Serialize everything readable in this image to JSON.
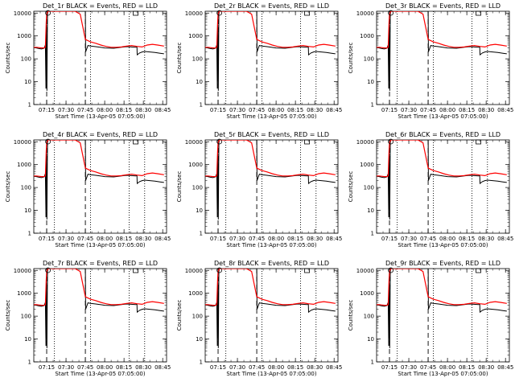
{
  "chart_data": {
    "type": "line",
    "layout": "3x3",
    "shared": {
      "xlabel": "Start Time (13-Apr-05 07:05:00)",
      "ylabel": "Counts/sec",
      "x_tick_labels": [
        "07:15",
        "07:30",
        "07:45",
        "08:00",
        "08:15",
        "08:30",
        "08:45"
      ],
      "x_tick_minutes": [
        10,
        25,
        40,
        55,
        70,
        85,
        100
      ],
      "xlim_minutes": [
        0,
        103
      ],
      "ylim": [
        1,
        12000
      ],
      "yscale": "log",
      "y_tick_labels": [
        "1",
        "10",
        "100",
        "1000",
        "10000"
      ],
      "y_tick_values": [
        1,
        10,
        100,
        1000,
        10000
      ],
      "dashed_lines_minutes": [
        10,
        40
      ],
      "dotted_lines_minutes": [
        16,
        44,
        74,
        86
      ],
      "series_names": [
        "Events",
        "LLD"
      ],
      "series_colors": [
        "#000000",
        "#ff0000"
      ]
    },
    "panels": [
      {
        "title": "Det_1r BLACK = Events, RED = LLD"
      },
      {
        "title": "Det_2r BLACK = Events, RED = LLD"
      },
      {
        "title": "Det_3r BLACK = Events, RED = LLD"
      },
      {
        "title": "Det_4r BLACK = Events, RED = LLD"
      },
      {
        "title": "Det_5r BLACK = Events, RED = LLD"
      },
      {
        "title": "Det_6r BLACK = Events, RED = LLD"
      },
      {
        "title": "Det_7r BLACK = Events, RED = LLD"
      },
      {
        "title": "Det_8r BLACK = Events, RED = LLD"
      },
      {
        "title": "Det_9r BLACK = Events, RED = LLD"
      }
    ],
    "events": {
      "x": [
        0,
        2,
        4,
        6,
        8,
        9,
        9.4,
        9.8,
        10.2,
        10.6,
        11,
        11.5,
        12,
        40,
        40.2,
        42,
        44,
        48,
        55,
        62,
        68,
        70,
        72,
        79,
        80,
        80.2,
        82,
        84,
        86,
        90,
        94,
        98,
        101
      ],
      "y": [
        320,
        300,
        280,
        270,
        290,
        400,
        5,
        3000,
        4,
        9000,
        12000,
        12000,
        12000,
        12000,
        200,
        380,
        360,
        340,
        300,
        290,
        320,
        330,
        340,
        320,
        330,
        150,
        180,
        200,
        210,
        200,
        190,
        175,
        165
      ]
    },
    "lld": {
      "x": [
        0,
        2,
        4,
        6,
        8,
        9,
        9.6,
        10,
        11,
        14,
        20,
        24,
        28,
        32,
        36,
        40,
        44,
        48,
        52,
        56,
        60,
        64,
        68,
        72,
        76,
        80,
        84,
        88,
        92,
        96,
        101
      ],
      "y": [
        320,
        320,
        310,
        300,
        300,
        320,
        3500,
        9000,
        12000,
        12000,
        12000,
        12000,
        12000,
        12000,
        9000,
        700,
        550,
        480,
        400,
        350,
        320,
        320,
        330,
        360,
        380,
        350,
        330,
        400,
        430,
        400,
        360
      ]
    },
    "marker": {
      "x": 11,
      "y": 12000
    },
    "marker_right": {
      "x": 79,
      "y": 12000
    }
  }
}
